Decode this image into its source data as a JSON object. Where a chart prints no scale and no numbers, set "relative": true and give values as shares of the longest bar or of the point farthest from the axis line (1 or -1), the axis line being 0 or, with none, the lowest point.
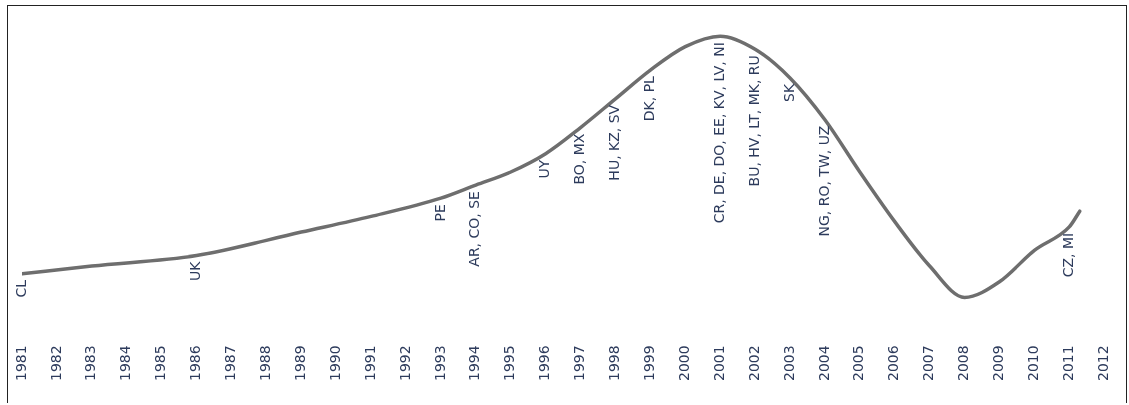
{
  "chart_data": {
    "type": "line",
    "relative": true,
    "grid": false,
    "legend": false,
    "marker": "none",
    "line_style": "solid",
    "xlim": [
      1981,
      2012
    ],
    "xticks": [
      1981,
      1982,
      1983,
      1984,
      1985,
      1986,
      1987,
      1988,
      1989,
      1990,
      1991,
      1992,
      1993,
      1994,
      1995,
      1996,
      1997,
      1998,
      1999,
      2000,
      2001,
      2002,
      2003,
      2004,
      2005,
      2006,
      2007,
      2008,
      2009,
      2010,
      2011,
      2012
    ],
    "series": [
      {
        "color": "#6e6e6e",
        "x": [
          1981,
          1983,
          1986,
          1989,
          1991,
          1993,
          1994,
          1995,
          1996,
          1997,
          1998,
          1999,
          2000,
          2001,
          2002,
          2003,
          2004,
          2005,
          2006,
          2007,
          2008,
          2009,
          2010,
          2011,
          2011.3
        ],
        "values": [
          0.09,
          0.12,
          0.16,
          0.25,
          0.31,
          0.38,
          0.43,
          0.48,
          0.55,
          0.65,
          0.76,
          0.87,
          0.96,
          1.0,
          0.95,
          0.84,
          0.68,
          0.48,
          0.29,
          0.12,
          0,
          0.06,
          0.18,
          0.27,
          0.33
        ]
      }
    ],
    "annotations": [
      {
        "text": "CL",
        "x": 1981,
        "y": 0.09
      },
      {
        "text": "UK",
        "x": 1986,
        "y": 0.16
      },
      {
        "text": "PE",
        "x": 1993,
        "y": 0.38
      },
      {
        "text": "AR, CO, SE",
        "x": 1994,
        "y": 0.43
      },
      {
        "text": "UY",
        "x": 1996,
        "y": 0.55
      },
      {
        "text": "BO, MX",
        "x": 1997,
        "y": 0.65
      },
      {
        "text": "HU, KZ, SV",
        "x": 1998,
        "y": 0.76
      },
      {
        "text": "DK, PL",
        "x": 1999,
        "y": 0.87
      },
      {
        "text": "CR, DE, DO, EE, KV, LV, NI",
        "x": 2001,
        "y": 1.0
      },
      {
        "text": "BU, HV, LT, MK, RU",
        "x": 2002,
        "y": 0.95
      },
      {
        "text": "SK",
        "x": 2003,
        "y": 0.84
      },
      {
        "text": "NG, RO, TW, UZ",
        "x": 2004,
        "y": 0.68
      },
      {
        "text": "CZ, MI",
        "x": 2011,
        "y": 0.27
      }
    ]
  }
}
